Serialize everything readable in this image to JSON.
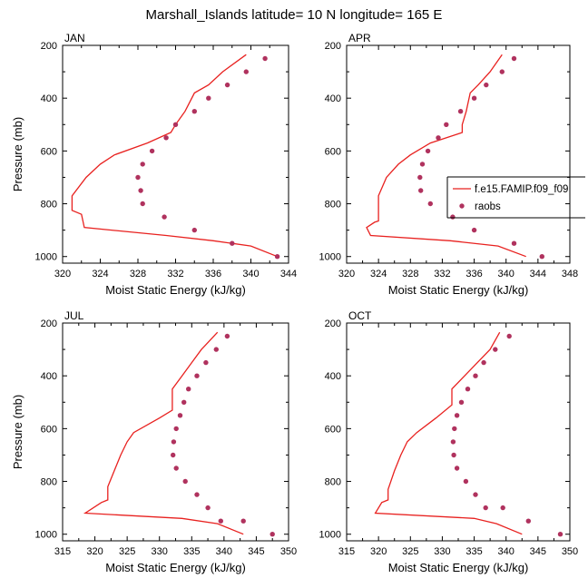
{
  "title": "Marshall_Islands  latitude= 10 N longitude= 165 E",
  "legend": {
    "model": "f.e15.FAMIP.f09_f09",
    "obs": "raobs"
  },
  "colors": {
    "model": "#e8211f",
    "obs": "#b0325e",
    "frame": "#000000"
  },
  "chart_data": [
    {
      "type": "line",
      "panel": "JAN",
      "xlabel": "Moist Static Energy (kJ/kg)",
      "ylabel": "Pressure (mb)",
      "xlim": [
        320,
        344
      ],
      "ylim": [
        200,
        1025
      ],
      "xticks": [
        320,
        324,
        328,
        332,
        336,
        340,
        344
      ],
      "yticks": [
        200,
        400,
        600,
        800,
        1000
      ],
      "series": [
        {
          "name": "f.e15.FAMIP.f09_f09",
          "style": "line",
          "points": [
            [
              339.5,
              235
            ],
            [
              337,
              300
            ],
            [
              335.5,
              350
            ],
            [
              334,
              380
            ],
            [
              333,
              450
            ],
            [
              332,
              500
            ],
            [
              331.5,
              530
            ],
            [
              329,
              570
            ],
            [
              325.5,
              615
            ],
            [
              324,
              650
            ],
            [
              322.5,
              700
            ],
            [
              321,
              770
            ],
            [
              321,
              825
            ],
            [
              322,
              840
            ],
            [
              322.3,
              890
            ],
            [
              331,
              920
            ],
            [
              336,
              940
            ],
            [
              340,
              960
            ],
            [
              342.8,
              1000
            ]
          ]
        },
        {
          "name": "raobs",
          "style": "markers",
          "points": [
            [
              341.5,
              250
            ],
            [
              339.5,
              300
            ],
            [
              337.5,
              350
            ],
            [
              335.5,
              400
            ],
            [
              334,
              450
            ],
            [
              332,
              500
            ],
            [
              331,
              550
            ],
            [
              329.5,
              600
            ],
            [
              328.5,
              650
            ],
            [
              328,
              700
            ],
            [
              328.3,
              750
            ],
            [
              328.5,
              800
            ],
            [
              330.8,
              850
            ],
            [
              334,
              900
            ],
            [
              338,
              950
            ],
            [
              342.8,
              1000
            ]
          ]
        }
      ]
    },
    {
      "type": "line",
      "panel": "APR",
      "xlabel": "Moist Static Energy (kJ/kg)",
      "ylabel": "",
      "xlim": [
        320,
        348
      ],
      "ylim": [
        200,
        1025
      ],
      "xticks": [
        320,
        324,
        328,
        332,
        336,
        340,
        344,
        348
      ],
      "yticks": [
        200,
        400,
        600,
        800,
        1000
      ],
      "series": [
        {
          "name": "f.e15.FAMIP.f09_f09",
          "style": "line",
          "points": [
            [
              339.5,
              235
            ],
            [
              338,
              300
            ],
            [
              336.5,
              350
            ],
            [
              335.5,
              380
            ],
            [
              335,
              450
            ],
            [
              334.5,
              500
            ],
            [
              334.5,
              530
            ],
            [
              330.5,
              570
            ],
            [
              328,
              615
            ],
            [
              326.5,
              650
            ],
            [
              325,
              700
            ],
            [
              324,
              770
            ],
            [
              324,
              865
            ],
            [
              323.5,
              870
            ],
            [
              322.5,
              890
            ],
            [
              323,
              920
            ],
            [
              333,
              940
            ],
            [
              339,
              960
            ],
            [
              342.5,
              1000
            ]
          ]
        },
        {
          "name": "raobs",
          "style": "markers",
          "points": [
            [
              341,
              250
            ],
            [
              339.5,
              300
            ],
            [
              337.5,
              350
            ],
            [
              336,
              400
            ],
            [
              334.3,
              450
            ],
            [
              332.5,
              500
            ],
            [
              331.5,
              550
            ],
            [
              330.2,
              600
            ],
            [
              329.5,
              650
            ],
            [
              329.2,
              700
            ],
            [
              329.3,
              750
            ],
            [
              330.5,
              800
            ],
            [
              333.3,
              850
            ],
            [
              336,
              900
            ],
            [
              341,
              950
            ],
            [
              344.5,
              1000
            ]
          ]
        }
      ]
    },
    {
      "type": "line",
      "panel": "JUL",
      "xlabel": "Moist Static Energy (kJ/kg)",
      "ylabel": "Pressure (mb)",
      "xlim": [
        315,
        350
      ],
      "ylim": [
        200,
        1025
      ],
      "xticks": [
        315,
        320,
        325,
        330,
        335,
        340,
        345,
        350
      ],
      "yticks": [
        200,
        400,
        600,
        800,
        1000
      ],
      "series": [
        {
          "name": "f.e15.FAMIP.f09_f09",
          "style": "line",
          "points": [
            [
              339,
              235
            ],
            [
              336.5,
              300
            ],
            [
              335,
              350
            ],
            [
              333.5,
              400
            ],
            [
              332,
              450
            ],
            [
              332,
              530
            ],
            [
              330,
              560
            ],
            [
              326,
              615
            ],
            [
              325,
              650
            ],
            [
              324,
              700
            ],
            [
              323,
              760
            ],
            [
              322,
              820
            ],
            [
              322,
              870
            ],
            [
              321,
              880
            ],
            [
              318.5,
              920
            ],
            [
              333.5,
              940
            ],
            [
              339,
              960
            ],
            [
              343,
              1000
            ]
          ]
        },
        {
          "name": "raobs",
          "style": "markers",
          "points": [
            [
              340.5,
              250
            ],
            [
              338.8,
              300
            ],
            [
              337.2,
              350
            ],
            [
              335.8,
              400
            ],
            [
              334.5,
              450
            ],
            [
              333.8,
              500
            ],
            [
              333.2,
              550
            ],
            [
              332.6,
              600
            ],
            [
              332.2,
              650
            ],
            [
              332.1,
              700
            ],
            [
              332.6,
              750
            ],
            [
              334,
              800
            ],
            [
              335.8,
              850
            ],
            [
              337.5,
              900
            ],
            [
              339.5,
              950
            ],
            [
              343,
              950
            ],
            [
              347.5,
              1000
            ]
          ]
        }
      ]
    },
    {
      "type": "line",
      "panel": "OCT",
      "xlabel": "Moist Static Energy (kJ/kg)",
      "ylabel": "",
      "xlim": [
        315,
        350
      ],
      "ylim": [
        200,
        1025
      ],
      "xticks": [
        315,
        320,
        325,
        330,
        335,
        340,
        345,
        350
      ],
      "yticks": [
        200,
        400,
        600,
        800,
        1000
      ],
      "series": [
        {
          "name": "f.e15.FAMIP.f09_f09",
          "style": "line",
          "points": [
            [
              339,
              235
            ],
            [
              337.5,
              300
            ],
            [
              335.5,
              350
            ],
            [
              333.5,
              400
            ],
            [
              331.5,
              450
            ],
            [
              331.5,
              510
            ],
            [
              329,
              560
            ],
            [
              326,
              615
            ],
            [
              324.5,
              650
            ],
            [
              323.5,
              700
            ],
            [
              322.5,
              760
            ],
            [
              321.5,
              830
            ],
            [
              321.5,
              870
            ],
            [
              320.5,
              880
            ],
            [
              319.5,
              920
            ],
            [
              335,
              940
            ],
            [
              338.5,
              960
            ],
            [
              342.5,
              1000
            ]
          ]
        },
        {
          "name": "raobs",
          "style": "markers",
          "points": [
            [
              340.5,
              250
            ],
            [
              338.3,
              300
            ],
            [
              336.5,
              350
            ],
            [
              335.2,
              400
            ],
            [
              334,
              450
            ],
            [
              333,
              500
            ],
            [
              332.3,
              550
            ],
            [
              331.9,
              600
            ],
            [
              331.7,
              650
            ],
            [
              331.8,
              700
            ],
            [
              332.3,
              750
            ],
            [
              333.7,
              800
            ],
            [
              335.2,
              850
            ],
            [
              336.8,
              900
            ],
            [
              339.5,
              900
            ],
            [
              343.5,
              950
            ],
            [
              348.5,
              1000
            ]
          ]
        }
      ]
    }
  ]
}
